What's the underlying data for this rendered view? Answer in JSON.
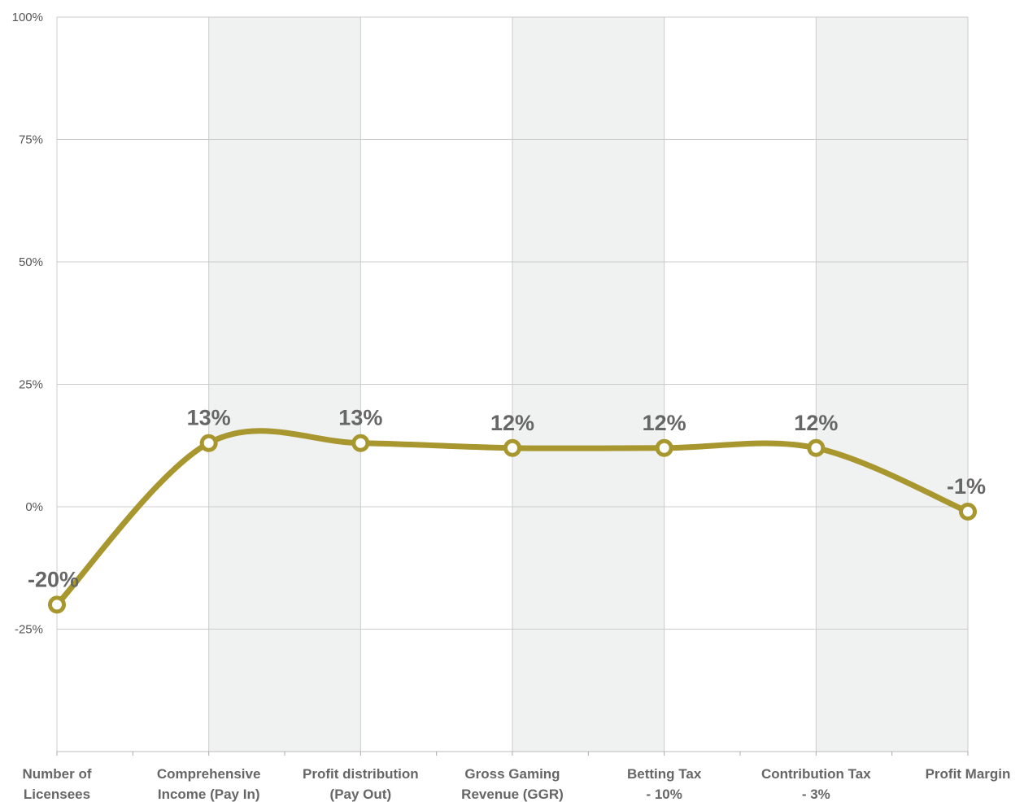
{
  "chart_data": {
    "type": "line",
    "title": "",
    "xlabel": "",
    "ylabel": "",
    "categories": [
      [
        "Number of",
        "Licensees"
      ],
      [
        "Comprehensive",
        "Income (Pay In)"
      ],
      [
        "Profit distribution",
        "(Pay Out)"
      ],
      [
        "Gross Gaming",
        "Revenue (GGR)"
      ],
      [
        "Betting Tax",
        "- 10%"
      ],
      [
        "Contribution Tax",
        "- 3%"
      ],
      [
        "Profit Margin"
      ]
    ],
    "series": [
      {
        "values": [
          -20,
          13,
          13,
          12,
          12,
          12,
          -1
        ]
      }
    ],
    "data_labels": [
      "-20%",
      "13%",
      "13%",
      "12%",
      "12%",
      "12%",
      "-1%"
    ],
    "y_ticks": [
      100,
      75,
      50,
      25,
      0,
      -25
    ],
    "y_tick_labels": [
      "100%",
      "75%",
      "50%",
      "25%",
      "0%",
      "-25%"
    ],
    "ylim": [
      -50,
      100
    ],
    "grid": true,
    "legend": "none",
    "line_color": "#A8962E",
    "band_color": "#F0F1F1",
    "grid_color": "#CCCCCC"
  }
}
